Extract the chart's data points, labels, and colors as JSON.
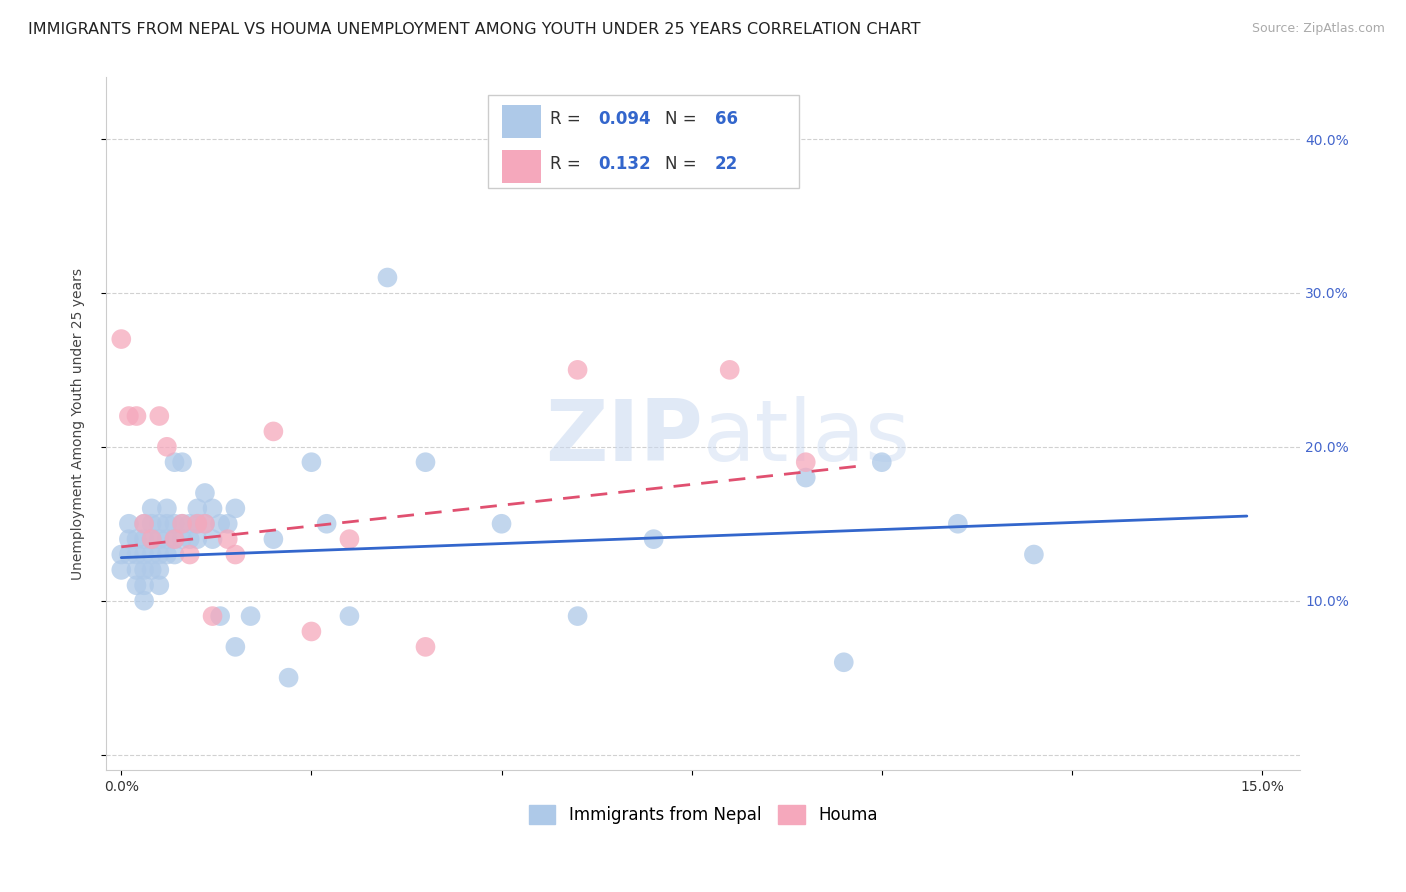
{
  "title": "IMMIGRANTS FROM NEPAL VS HOUMA UNEMPLOYMENT AMONG YOUTH UNDER 25 YEARS CORRELATION CHART",
  "source": "Source: ZipAtlas.com",
  "ylabel": "Unemployment Among Youth under 25 years",
  "xlim": [
    -0.002,
    0.155
  ],
  "ylim": [
    -0.01,
    0.44
  ],
  "xtick_positions": [
    0.0,
    0.025,
    0.05,
    0.075,
    0.1,
    0.125,
    0.15
  ],
  "xtick_labels_show": {
    "0.0": "0.0%",
    "0.15": "15.0%"
  },
  "ytick_positions": [
    0.0,
    0.1,
    0.2,
    0.3,
    0.4
  ],
  "ytick_labels": [
    "",
    "10.0%",
    "20.0%",
    "30.0%",
    "40.0%"
  ],
  "r_blue": 0.094,
  "n_blue": 66,
  "r_pink": 0.132,
  "n_pink": 22,
  "blue_color": "#aec9e8",
  "pink_color": "#f5a8bc",
  "blue_line_color": "#3366cc",
  "pink_line_color": "#e05070",
  "watermark_zip": "ZIP",
  "watermark_atlas": "atlas",
  "legend_labels": [
    "Immigrants from Nepal",
    "Houma"
  ],
  "blue_scatter_x": [
    0.0,
    0.0,
    0.001,
    0.001,
    0.001,
    0.002,
    0.002,
    0.002,
    0.002,
    0.003,
    0.003,
    0.003,
    0.003,
    0.003,
    0.003,
    0.004,
    0.004,
    0.004,
    0.004,
    0.004,
    0.005,
    0.005,
    0.005,
    0.005,
    0.005,
    0.006,
    0.006,
    0.006,
    0.006,
    0.007,
    0.007,
    0.007,
    0.007,
    0.008,
    0.008,
    0.008,
    0.009,
    0.009,
    0.01,
    0.01,
    0.01,
    0.011,
    0.011,
    0.012,
    0.012,
    0.013,
    0.013,
    0.014,
    0.015,
    0.015,
    0.017,
    0.02,
    0.022,
    0.025,
    0.027,
    0.03,
    0.035,
    0.04,
    0.05,
    0.06,
    0.07,
    0.09,
    0.095,
    0.1,
    0.11,
    0.12
  ],
  "blue_scatter_y": [
    0.13,
    0.12,
    0.14,
    0.15,
    0.13,
    0.14,
    0.13,
    0.12,
    0.11,
    0.15,
    0.14,
    0.13,
    0.12,
    0.11,
    0.1,
    0.16,
    0.15,
    0.14,
    0.13,
    0.12,
    0.15,
    0.14,
    0.13,
    0.12,
    0.11,
    0.16,
    0.15,
    0.14,
    0.13,
    0.19,
    0.15,
    0.14,
    0.13,
    0.19,
    0.15,
    0.14,
    0.15,
    0.14,
    0.16,
    0.15,
    0.14,
    0.17,
    0.15,
    0.16,
    0.14,
    0.15,
    0.09,
    0.15,
    0.16,
    0.07,
    0.09,
    0.14,
    0.05,
    0.19,
    0.15,
    0.09,
    0.31,
    0.19,
    0.15,
    0.09,
    0.14,
    0.18,
    0.06,
    0.19,
    0.15,
    0.13
  ],
  "pink_scatter_x": [
    0.0,
    0.001,
    0.002,
    0.003,
    0.004,
    0.005,
    0.006,
    0.007,
    0.008,
    0.009,
    0.01,
    0.011,
    0.012,
    0.014,
    0.015,
    0.02,
    0.025,
    0.03,
    0.04,
    0.06,
    0.08,
    0.09
  ],
  "pink_scatter_y": [
    0.27,
    0.22,
    0.22,
    0.15,
    0.14,
    0.22,
    0.2,
    0.14,
    0.15,
    0.13,
    0.15,
    0.15,
    0.09,
    0.14,
    0.13,
    0.21,
    0.08,
    0.14,
    0.07,
    0.25,
    0.25,
    0.19
  ],
  "blue_line_x": [
    0.0,
    0.148
  ],
  "blue_line_y": [
    0.128,
    0.155
  ],
  "pink_line_x": [
    0.0,
    0.098
  ],
  "pink_line_y": [
    0.135,
    0.188
  ],
  "background_color": "#ffffff",
  "grid_color": "#cccccc",
  "title_fontsize": 11.5,
  "axis_label_fontsize": 10,
  "tick_fontsize": 10,
  "ytick_color": "#4466cc",
  "xtick_color": "#333333"
}
